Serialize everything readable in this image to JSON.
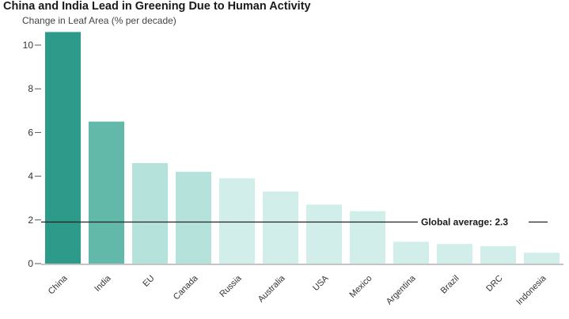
{
  "chart_data": {
    "type": "bar",
    "title": "China and India Lead in Greening Due to Human Activity",
    "subtitle": "Change in Leaf Area (% per decade)",
    "categories": [
      "China",
      "India",
      "EU",
      "Canada",
      "Russia",
      "Australia",
      "USA",
      "Mexico",
      "Argentina",
      "Brazil",
      "DRC",
      "Indonesia"
    ],
    "values": [
      10.6,
      6.5,
      4.6,
      4.2,
      3.9,
      3.3,
      2.7,
      2.4,
      1.0,
      0.9,
      0.8,
      0.5
    ],
    "ylim": [
      0,
      11
    ],
    "yticks": [
      "0",
      "2",
      "4",
      "6",
      "8",
      "10"
    ],
    "ytick_values": [
      0,
      2,
      4,
      6,
      8,
      10
    ],
    "reference_line": {
      "value": 2.3,
      "label": "Global average: 2.3"
    },
    "colors": [
      "#2e9a8a",
      "#62b9a9",
      "#b6e2dc",
      "#b6e2dc",
      "#d2eeea",
      "#d2eeea",
      "#d2eeea",
      "#d2eeea",
      "#d2eeea",
      "#d2eeea",
      "#d2eeea",
      "#d2eeea"
    ]
  }
}
